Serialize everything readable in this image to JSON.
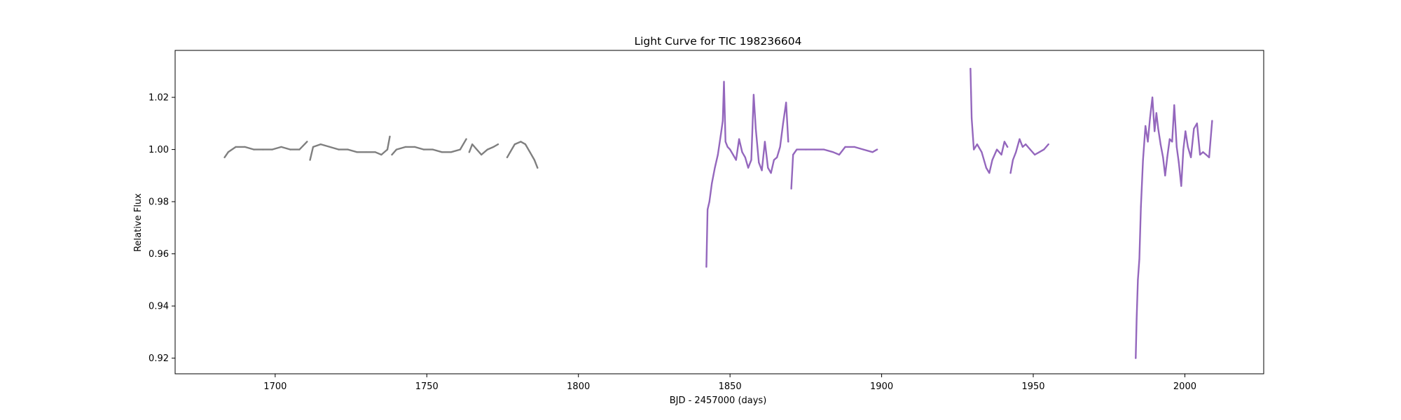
{
  "chart_data": {
    "type": "scatter",
    "title": "Light Curve for TIC 198236604",
    "xlabel": "BJD - 2457000 (days)",
    "ylabel": "Relative Flux",
    "xlim": [
      1667,
      2026
    ],
    "ylim": [
      0.914,
      1.038
    ],
    "xticks": [
      1700,
      1750,
      1800,
      1850,
      1900,
      1950,
      2000
    ],
    "yticks": [
      0.92,
      0.94,
      0.96,
      0.98,
      1.0,
      1.02
    ],
    "xtick_labels": [
      "1700",
      "1750",
      "1800",
      "1850",
      "1900",
      "1950",
      "2000"
    ],
    "ytick_labels": [
      "0.92",
      "0.94",
      "0.96",
      "0.98",
      "1.00",
      "1.02"
    ],
    "grid": false,
    "legend": "none",
    "series": [
      {
        "color": "#7f7f7f",
        "segments": [
          {
            "x": [
              1683.3,
              1684.5,
              1687,
              1690,
              1693,
              1696,
              1699,
              1702,
              1705,
              1708,
              1710.5
            ],
            "y": [
              0.997,
              0.999,
              1.001,
              1.001,
              1.0,
              1.0,
              1.0,
              1.001,
              1.0,
              1.0,
              1.003
            ]
          },
          {
            "x": [
              1711.5,
              1712.5,
              1715,
              1718,
              1721,
              1724,
              1727,
              1730,
              1733,
              1735,
              1737,
              1737.8
            ],
            "y": [
              0.996,
              1.001,
              1.002,
              1.001,
              1.0,
              1.0,
              0.999,
              0.999,
              0.999,
              0.998,
              1.0,
              1.005
            ]
          },
          {
            "x": [
              1738.5,
              1740,
              1743,
              1746,
              1749,
              1752,
              1755,
              1758,
              1761,
              1763
            ],
            "y": [
              0.998,
              1.0,
              1.001,
              1.001,
              1.0,
              1.0,
              0.999,
              0.999,
              1.0,
              1.004
            ]
          },
          {
            "x": [
              1764,
              1765,
              1766.5,
              1768,
              1770,
              1772,
              1773.5
            ],
            "y": [
              0.999,
              1.002,
              1.0,
              0.998,
              1.0,
              1.001,
              1.002
            ]
          },
          {
            "x": [
              1776.5,
              1777.5,
              1779,
              1781,
              1782.5,
              1784,
              1785.5,
              1786.5
            ],
            "y": [
              0.997,
              0.999,
              1.002,
              1.003,
              1.002,
              0.999,
              0.996,
              0.993
            ]
          }
        ]
      },
      {
        "color": "#9467bd",
        "segments": [
          {
            "x": [
              1842.2,
              1842.6,
              1843.2,
              1844,
              1845,
              1846,
              1847,
              1847.6,
              1848,
              1848.5,
              1849.2,
              1850,
              1851,
              1852,
              1853,
              1854,
              1855,
              1856,
              1857,
              1857.8,
              1858.5,
              1859.5,
              1860.5,
              1861.5,
              1862.5,
              1863.5,
              1864.5,
              1865.5,
              1866.5,
              1867.5,
              1868.5,
              1869.2
            ],
            "y": [
              0.955,
              0.977,
              0.98,
              0.987,
              0.993,
              0.998,
              1.006,
              1.011,
              1.026,
              1.003,
              1.001,
              1.0,
              0.998,
              0.996,
              1.004,
              0.999,
              0.997,
              0.993,
              0.996,
              1.021,
              1.008,
              0.995,
              0.992,
              1.003,
              0.993,
              0.991,
              0.996,
              0.997,
              1.001,
              1.01,
              1.018,
              1.003
            ]
          },
          {
            "x": [
              1870.2,
              1870.8,
              1872,
              1875,
              1878,
              1881,
              1884,
              1886,
              1888,
              1891,
              1894,
              1897,
              1898.5
            ],
            "y": [
              0.985,
              0.998,
              1.0,
              1.0,
              1.0,
              1.0,
              0.999,
              0.998,
              1.001,
              1.001,
              1.0,
              0.999,
              1.0
            ]
          },
          {
            "x": [
              1929.3,
              1929.7,
              1930.4,
              1931.5,
              1933,
              1934.5,
              1935.5,
              1936.5,
              1938,
              1939.5,
              1940.5,
              1941.5
            ],
            "y": [
              1.031,
              1.012,
              1.0,
              1.002,
              0.999,
              0.993,
              0.991,
              0.996,
              1.0,
              0.998,
              1.003,
              1.001
            ]
          },
          {
            "x": [
              1942.5,
              1943.3,
              1944.3,
              1945.5,
              1946.5,
              1947.5,
              1949,
              1950.5,
              1952,
              1953.5,
              1955
            ],
            "y": [
              0.991,
              0.996,
              0.999,
              1.004,
              1.001,
              1.002,
              1.0,
              0.998,
              0.999,
              1.0,
              1.002
            ]
          },
          {
            "x": [
              1983.8,
              1984.1,
              1984.5,
              1985,
              1985.5,
              1986.2,
              1987,
              1987.8,
              1988.5,
              1989.3,
              1990,
              1990.6,
              1991.2,
              1992,
              1992.8,
              1993.5,
              1994.2,
              1995,
              1995.8,
              1996.5,
              1997.3,
              1998,
              1998.8,
              1999.5,
              2000.2,
              2001,
              2002,
              2003,
              2004,
              2005,
              2006,
              2007,
              2008,
              2009
            ],
            "y": [
              0.92,
              0.935,
              0.95,
              0.958,
              0.978,
              0.996,
              1.009,
              1.003,
              1.012,
              1.02,
              1.007,
              1.014,
              1.008,
              1.002,
              0.997,
              0.99,
              0.997,
              1.004,
              1.003,
              1.017,
              1.001,
              0.995,
              0.986,
              1.0,
              1.007,
              1.001,
              0.997,
              1.008,
              1.01,
              0.998,
              0.999,
              0.998,
              0.997,
              1.011
            ]
          }
        ]
      }
    ]
  }
}
